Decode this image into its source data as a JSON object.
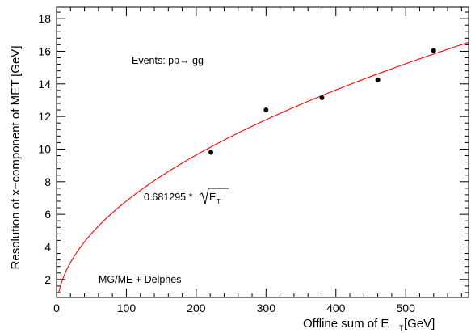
{
  "chart_data": {
    "type": "scatter",
    "xlabel_main": "Offline sum of E",
    "xlabel_sub": "T",
    "xlabel_unit": " [GeV]",
    "ylabel": "Resolution of x−component  of MET [GeV]",
    "xlim": [
      0,
      590
    ],
    "ylim": [
      0.9,
      18.7
    ],
    "xticks": [
      0,
      100,
      200,
      300,
      400,
      500
    ],
    "yticks": [
      2,
      4,
      6,
      8,
      10,
      12,
      14,
      16,
      18
    ],
    "grid": false,
    "points": [
      {
        "x": 221,
        "y": 9.8
      },
      {
        "x": 300,
        "y": 12.4
      },
      {
        "x": 380,
        "y": 13.15
      },
      {
        "x": 460,
        "y": 14.25
      },
      {
        "x": 540,
        "y": 16.05
      }
    ],
    "fit": {
      "coefficient": 0.681295,
      "x_range": [
        3,
        590
      ],
      "label_prefix": "0.681295 *",
      "label_var": "E",
      "label_sub": "T"
    },
    "annotations": {
      "events": "Events: pp→ gg",
      "generator": "MG/ME + Delphes"
    },
    "colors": {
      "fit_line": "#ff0000",
      "points": "#000000"
    }
  }
}
